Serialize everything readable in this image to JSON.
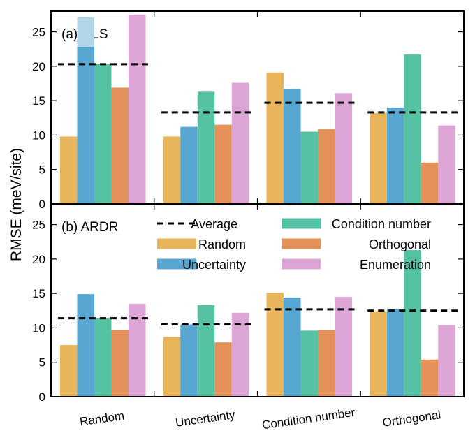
{
  "chart_data": {
    "type": "bar",
    "ylabel": "RMSE (meV/site)",
    "categories": [
      "Random",
      "Uncertainty",
      "Condition number",
      "Orthogonal"
    ],
    "ylim": [
      0,
      28
    ],
    "yticks": [
      0,
      5,
      10,
      15,
      20,
      25
    ],
    "grid": false,
    "legend_position": "top (inside panel b)",
    "series_colors": {
      "Random": "#e8b55a",
      "Uncertainty": "#58a6d2",
      "Condition number": "#56c2a4",
      "Orthogonal": "#e4925a",
      "Enumeration": "#dda4d6"
    },
    "average_line_color": "#000000",
    "uncertainty_extension_color": "#b3d5ea",
    "legend": {
      "average": "Average",
      "entries": [
        "Random",
        "Uncertainty",
        "Condition number",
        "Orthogonal",
        "Enumeration"
      ]
    },
    "panels": [
      {
        "label": "(a) OLS",
        "series": [
          {
            "name": "Random",
            "values": [
              9.8,
              9.8,
              19.1,
              13.2
            ]
          },
          {
            "name": "Uncertainty",
            "values": [
              22.8,
              11.2,
              16.7,
              14.0
            ]
          },
          {
            "name": "Condition number",
            "values": [
              20.3,
              16.3,
              10.5,
              21.7
            ]
          },
          {
            "name": "Orthogonal",
            "values": [
              16.9,
              11.5,
              10.9,
              6.0
            ]
          },
          {
            "name": "Enumeration",
            "values": [
              27.5,
              17.6,
              16.1,
              11.4
            ]
          }
        ],
        "uncertainty_extended": [
          27.1,
          null,
          null,
          null
        ],
        "average": [
          20.3,
          13.3,
          14.7,
          13.3
        ]
      },
      {
        "label": "(b) ARDR",
        "series": [
          {
            "name": "Random",
            "values": [
              7.5,
              8.7,
              15.1,
              12.4
            ]
          },
          {
            "name": "Uncertainty",
            "values": [
              14.9,
              10.5,
              14.4,
              12.7
            ]
          },
          {
            "name": "Condition number",
            "values": [
              11.4,
              13.3,
              9.6,
              21.3
            ]
          },
          {
            "name": "Orthogonal",
            "values": [
              9.7,
              7.9,
              9.7,
              5.4
            ]
          },
          {
            "name": "Enumeration",
            "values": [
              13.5,
              12.2,
              14.5,
              10.4
            ]
          }
        ],
        "average": [
          11.4,
          10.5,
          12.7,
          12.5
        ]
      }
    ]
  }
}
